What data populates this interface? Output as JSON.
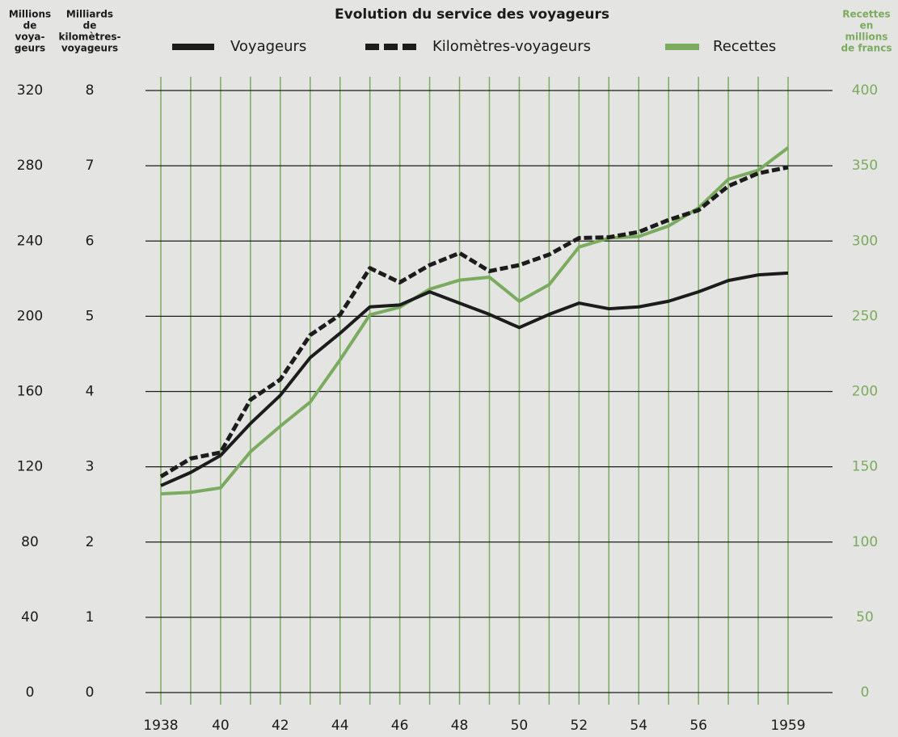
{
  "chart_data": {
    "type": "line",
    "title": "Evolution du service des voyageurs",
    "y_axis_label": [
      "Millions",
      "de",
      "voya-",
      "geurs"
    ],
    "y2_axis_label": [
      "Milliards",
      "de",
      "kilomètres-",
      "voyageurs"
    ],
    "y3_axis_label": [
      "Recettes",
      "en",
      "millions",
      "de francs"
    ],
    "x": [
      1938,
      1939,
      1940,
      1941,
      1942,
      1943,
      1944,
      1945,
      1946,
      1947,
      1948,
      1949,
      1950,
      1951,
      1952,
      1953,
      1954,
      1955,
      1956,
      1957,
      1958,
      1959
    ],
    "xlim": [
      1938,
      1959
    ],
    "xticks": [
      1938,
      {
        "value": 1940,
        "label": "40"
      },
      {
        "value": 1942,
        "label": "42"
      },
      {
        "value": 1944,
        "label": "44"
      },
      {
        "value": 1946,
        "label": "46"
      },
      {
        "value": 1948,
        "label": "48"
      },
      {
        "value": 1950,
        "label": "50"
      },
      {
        "value": 1952,
        "label": "52"
      },
      {
        "value": 1954,
        "label": "54"
      },
      {
        "value": 1956,
        "label": "56"
      },
      1959
    ],
    "ylim": [
      0,
      320
    ],
    "yticks": [
      0,
      40,
      80,
      120,
      160,
      200,
      240,
      280,
      320
    ],
    "y2lim": [
      0,
      8
    ],
    "y2ticks": [
      0,
      1,
      2,
      3,
      4,
      5,
      6,
      7,
      8
    ],
    "y3lim": [
      0,
      400
    ],
    "y3ticks": [
      0,
      50,
      100,
      150,
      200,
      250,
      300,
      350,
      400
    ],
    "grid": true,
    "legend": "top",
    "series": [
      {
        "name": "Voyageurs",
        "color": "#1c1c1c",
        "style": "solid",
        "values": [
          110,
          117,
          126,
          143,
          158,
          178,
          191,
          205,
          206,
          213,
          207,
          201,
          194,
          201,
          207,
          204,
          205,
          208,
          213,
          219,
          222,
          223
        ]
      },
      {
        "name": "Kilomètres-voyageurs",
        "color": "#1c1c1c",
        "style": "dashed",
        "axis": "y2",
        "values": [
          2.87,
          3.11,
          3.19,
          3.89,
          4.16,
          4.75,
          5.02,
          5.64,
          5.45,
          5.68,
          5.84,
          5.6,
          5.68,
          5.82,
          6.04,
          6.05,
          6.12,
          6.28,
          6.41,
          6.73,
          6.9,
          6.98
        ]
      },
      {
        "name": "Recettes",
        "color": "#7aab5e",
        "style": "solid",
        "axis": "y3",
        "values": [
          132,
          133,
          136,
          160,
          177,
          193,
          221,
          251,
          256,
          268,
          274,
          276,
          260,
          271,
          296,
          302,
          303,
          310,
          322,
          341,
          347,
          362
        ]
      }
    ]
  }
}
